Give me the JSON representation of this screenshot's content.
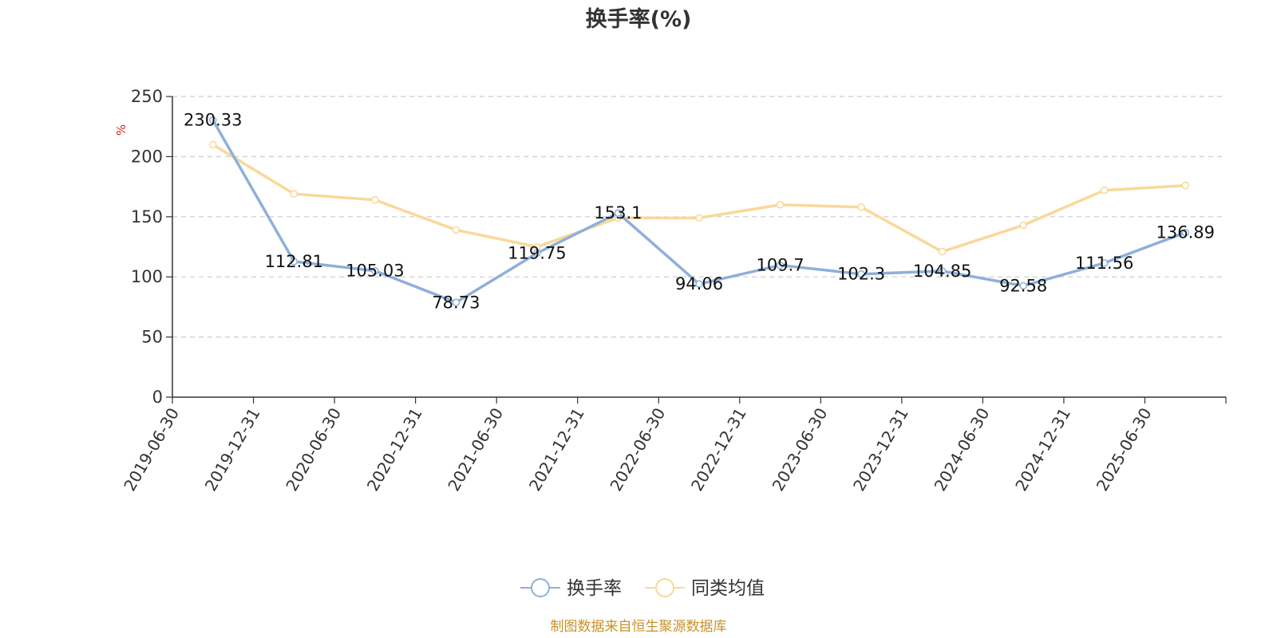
{
  "chart_data": {
    "type": "line",
    "title": "换手率(%)",
    "ylabel": "%",
    "ylim": [
      0,
      250
    ],
    "yticks": [
      0,
      50,
      100,
      150,
      200,
      250
    ],
    "grid": true,
    "legend_position": "bottom",
    "categories": [
      "2019-06-30",
      "2019-12-31",
      "2020-06-30",
      "2020-12-31",
      "2021-06-30",
      "2021-12-31",
      "2022-06-30",
      "2022-12-31",
      "2023-06-30",
      "2023-12-31",
      "2024-06-30",
      "2024-12-31",
      "2025-06-30"
    ],
    "series": [
      {
        "name": "换手率",
        "color": "#8eb0da",
        "values": [
          230.33,
          112.81,
          105.03,
          78.73,
          119.75,
          153.1,
          94.06,
          109.7,
          102.3,
          104.85,
          92.58,
          111.56,
          136.89
        ],
        "labels": [
          "230.33",
          "112.81",
          "105.03",
          "78.73",
          "119.75",
          "153.1",
          "94.06",
          "109.7",
          "102.3",
          "104.85",
          "92.58",
          "111.56",
          "136.89"
        ]
      },
      {
        "name": "同类均值",
        "color": "#f9d899",
        "values": [
          210,
          169,
          164,
          139,
          125,
          149,
          149,
          160,
          158,
          121,
          143,
          172,
          176
        ]
      }
    ],
    "source": "制图数据来自恒生聚源数据库"
  }
}
